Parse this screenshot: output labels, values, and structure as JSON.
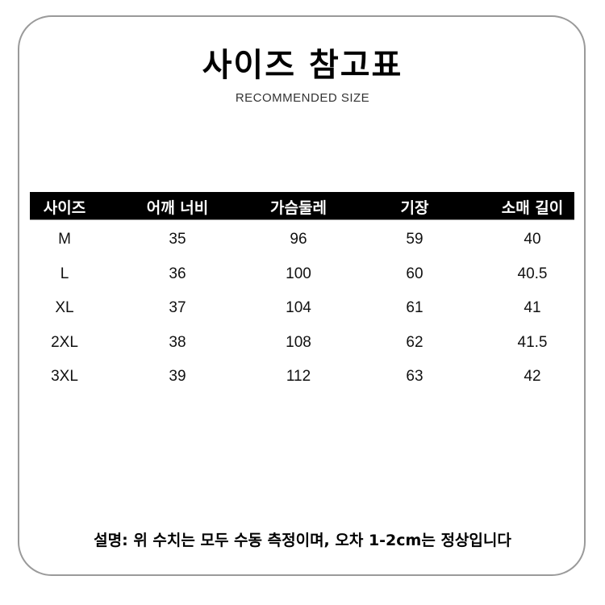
{
  "title": "사이즈 참고표",
  "subtitle": "RECOMMENDED SIZE",
  "table": {
    "headers": [
      "사이즈",
      "어깨 너비",
      "가슴둘레",
      "기장",
      "소매 길이"
    ],
    "rows": [
      [
        "M",
        "35",
        "96",
        "59",
        "40"
      ],
      [
        "L",
        "36",
        "100",
        "60",
        "40.5"
      ],
      [
        "XL",
        "37",
        "104",
        "61",
        "41"
      ],
      [
        "2XL",
        "38",
        "108",
        "62",
        "41.5"
      ],
      [
        "3XL",
        "39",
        "112",
        "63",
        "42"
      ]
    ]
  },
  "note": "설명: 위 수치는 모두 수동 측정이며, 오차 1-2cm는 정상입니다"
}
